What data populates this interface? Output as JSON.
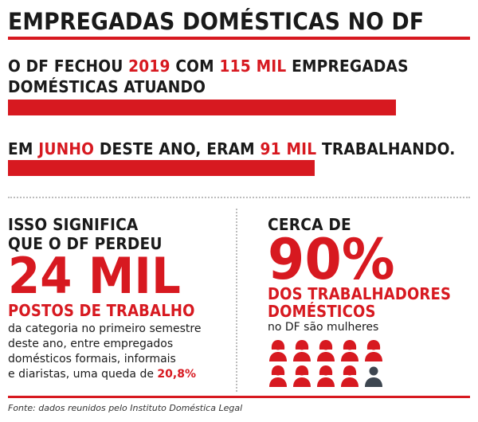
{
  "title": "EMPREGADAS DOMÉSTICAS NO DF",
  "line1": {
    "p1": "O DF FECHOU ",
    "year": "2019",
    "p2": " COM ",
    "amount": "115 MIL",
    "p3": " EMPREGADAS",
    "p4": "DOMÉSTICAS ATUANDO",
    "value": 115
  },
  "line2": {
    "p1": "EM ",
    "month": "JUNHO",
    "p2": " DESTE ANO, ERAM ",
    "amount": "91 MIL",
    "p3": " TRABALHANDO.",
    "value": 91
  },
  "left": {
    "lead1": "ISSO SIGNIFICA",
    "lead2": "QUE O DF PERDEU",
    "big": "24 MIL",
    "sub": "POSTOS DE TRABALHO",
    "desc1": "da categoria no primeiro semestre",
    "desc2": "deste ano, entre empregados",
    "desc3": "domésticos formais, informais",
    "desc4": "e diaristas, uma queda de ",
    "pct": "20,8%"
  },
  "right": {
    "lead": "CERCA DE",
    "big": "90%",
    "sub1": "DOS TRABALHADORES",
    "sub2": "DOMÉSTICOS",
    "desc": "no DF são mulheres",
    "icons": {
      "total": 10,
      "highlighted": 9,
      "icon_highlight": "woman-icon",
      "icon_other": "person-icon",
      "color_highlight": "#d71920",
      "color_other": "#3d4650"
    }
  },
  "source": "Fonte: dados reunidos pelo Instituto Doméstica Legal",
  "colors": {
    "accent": "#d71920",
    "text": "#1a1a1a",
    "separator": "#bdbdbd"
  }
}
